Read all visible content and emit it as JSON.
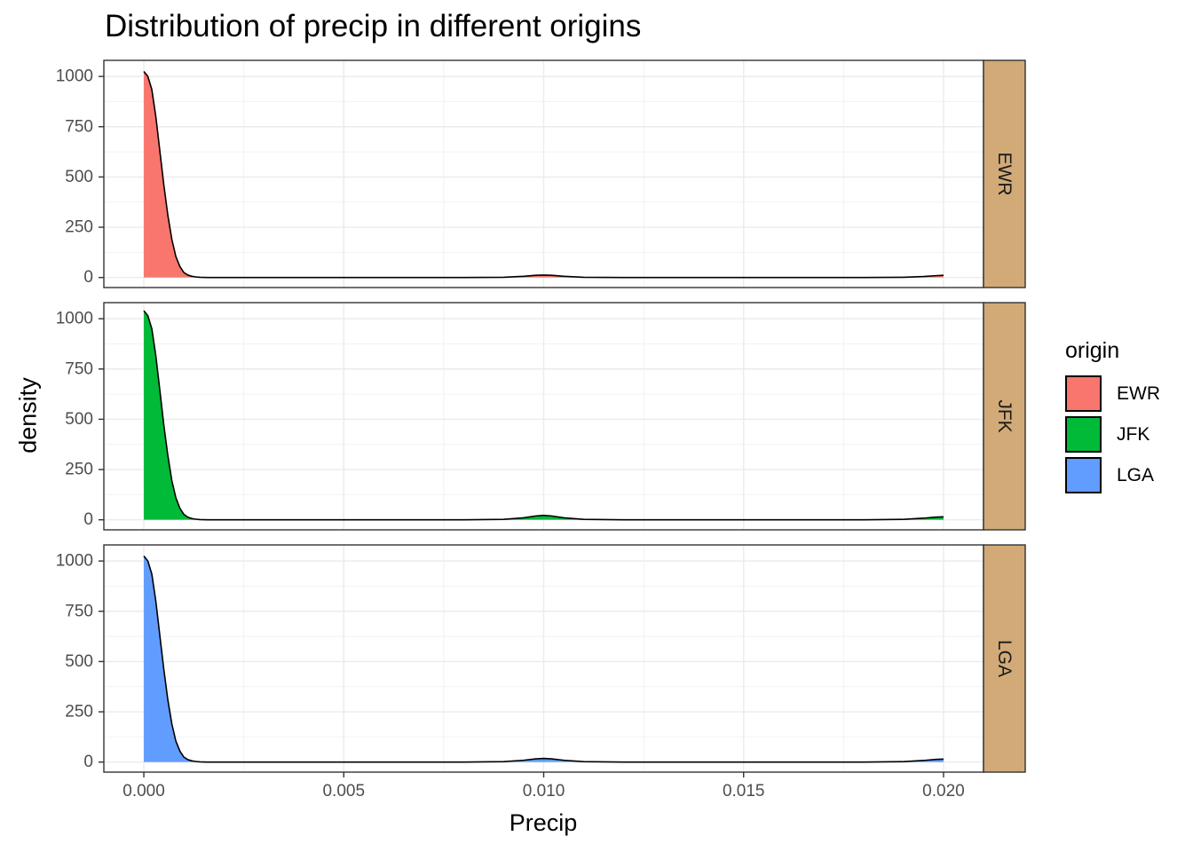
{
  "chart_data": {
    "type": "area",
    "title": "Distribution of precip in different origins",
    "xlabel": "Precip",
    "ylabel": "density",
    "xlim": [
      -0.001,
      0.021
    ],
    "ylim": [
      -50,
      1080
    ],
    "x_ticks": [
      0.0,
      0.005,
      0.01,
      0.015,
      0.02
    ],
    "x_tick_labels": [
      "0.000",
      "0.005",
      "0.010",
      "0.015",
      "0.020"
    ],
    "y_ticks": [
      0,
      250,
      500,
      750,
      1000
    ],
    "y_tick_labels": [
      "0",
      "250",
      "500",
      "750",
      "1000"
    ],
    "grid": true,
    "legend": {
      "title": "origin",
      "position": "right"
    },
    "facet_label_bg": "#D2AA78",
    "series": [
      {
        "name": "EWR",
        "color": "#F8766D",
        "x": [
          0.0,
          0.0001,
          0.0002,
          0.0003,
          0.0004,
          0.0005,
          0.0006,
          0.0007,
          0.0008,
          0.0009,
          0.001,
          0.0011,
          0.0012,
          0.0013,
          0.0014,
          0.0016,
          0.002,
          0.005,
          0.008,
          0.009,
          0.0095,
          0.0098,
          0.01,
          0.0102,
          0.0105,
          0.011,
          0.012,
          0.015,
          0.018,
          0.019,
          0.0195,
          0.0198,
          0.02
        ],
        "y": [
          1025,
          1000,
          935,
          800,
          630,
          460,
          310,
          190,
          105,
          55,
          25,
          12,
          6,
          3,
          1,
          0,
          0,
          0,
          0,
          1,
          6,
          11,
          12,
          11,
          6,
          1,
          0,
          0,
          0,
          1,
          5,
          9,
          11
        ]
      },
      {
        "name": "JFK",
        "color": "#00BA38",
        "x": [
          0.0,
          0.0001,
          0.0002,
          0.0003,
          0.0004,
          0.0005,
          0.0006,
          0.0007,
          0.0008,
          0.0009,
          0.001,
          0.0011,
          0.0012,
          0.0013,
          0.0014,
          0.0016,
          0.002,
          0.005,
          0.008,
          0.009,
          0.0095,
          0.0098,
          0.01,
          0.0102,
          0.0105,
          0.011,
          0.012,
          0.015,
          0.018,
          0.019,
          0.0195,
          0.0198,
          0.02
        ],
        "y": [
          1040,
          1015,
          950,
          815,
          645,
          470,
          320,
          195,
          110,
          58,
          27,
          13,
          6,
          3,
          1,
          0,
          0,
          0,
          0,
          2,
          10,
          19,
          22,
          19,
          10,
          2,
          0,
          0,
          0,
          2,
          8,
          13,
          15
        ]
      },
      {
        "name": "LGA",
        "color": "#619CFF",
        "x": [
          0.0,
          0.0001,
          0.0002,
          0.0003,
          0.0004,
          0.0005,
          0.0006,
          0.0007,
          0.0008,
          0.0009,
          0.001,
          0.0011,
          0.0012,
          0.0013,
          0.0014,
          0.0016,
          0.002,
          0.005,
          0.008,
          0.009,
          0.0095,
          0.0098,
          0.01,
          0.0102,
          0.0105,
          0.011,
          0.012,
          0.015,
          0.018,
          0.019,
          0.0195,
          0.0198,
          0.02
        ],
        "y": [
          1025,
          1000,
          935,
          800,
          630,
          460,
          310,
          190,
          105,
          55,
          25,
          12,
          6,
          3,
          1,
          0,
          0,
          0,
          0,
          2,
          9,
          16,
          18,
          16,
          9,
          2,
          0,
          0,
          0,
          2,
          8,
          13,
          15
        ]
      }
    ]
  }
}
